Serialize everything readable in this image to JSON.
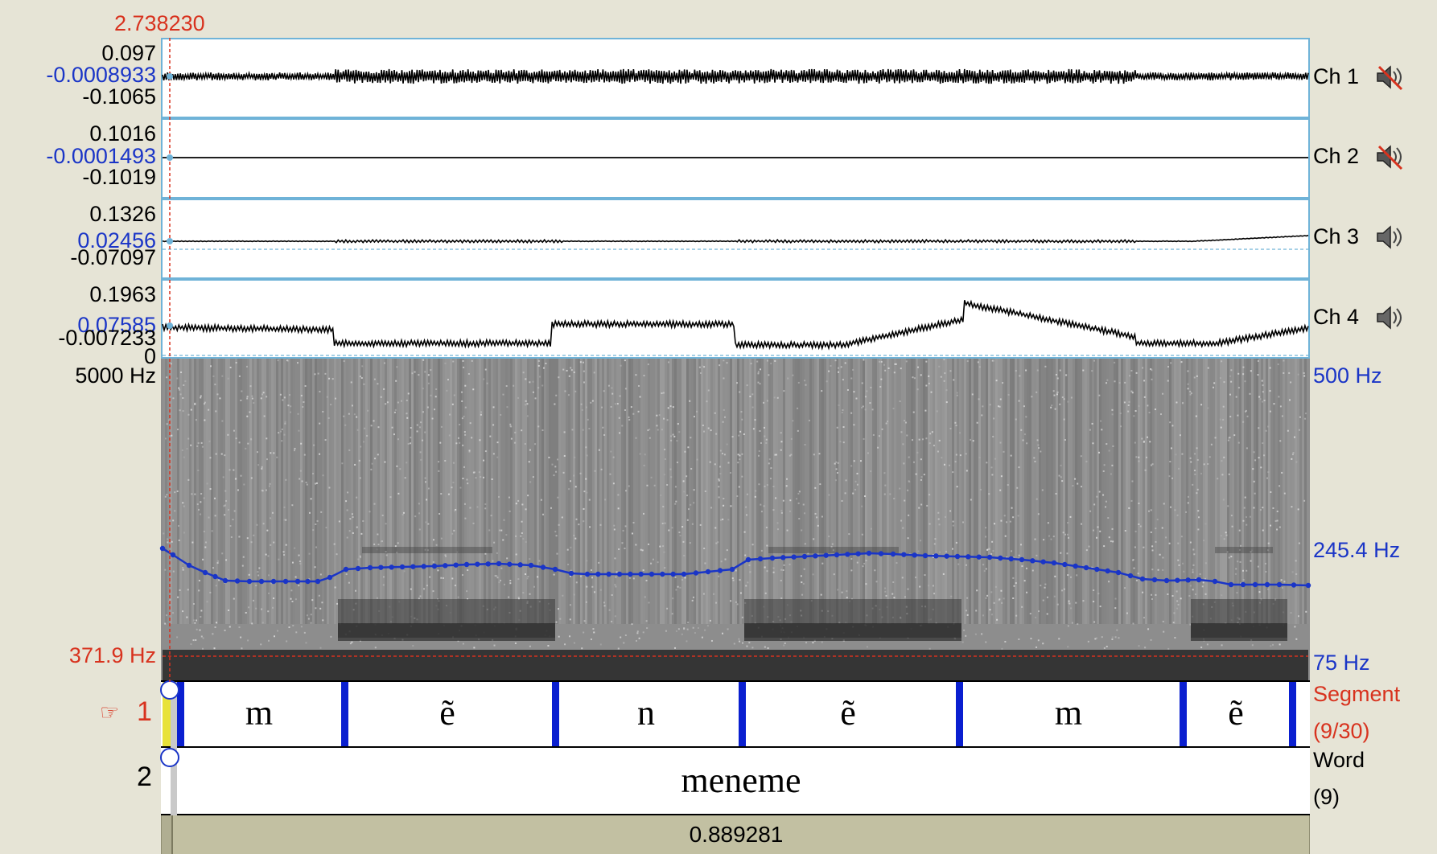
{
  "cursor": {
    "time": "2.738230"
  },
  "channels": [
    {
      "label": "Ch 1",
      "max": "0.097",
      "value": "-0.0008933",
      "min": "-0.1065",
      "muted": true
    },
    {
      "label": "Ch 2",
      "max": "0.1016",
      "value": "-0.0001493",
      "min": "-0.1019",
      "muted": true
    },
    {
      "label": "Ch 3",
      "max": "0.1326",
      "value": "0.02456",
      "min": "-0.07097",
      "muted": false
    },
    {
      "label": "Ch 4",
      "max": "0.1963",
      "value": "0.07585",
      "min": "-0.007233",
      "zero": "0",
      "muted": false
    }
  ],
  "spectrogram": {
    "freq_top": "5000 Hz",
    "cursor_freq": "371.9 Hz",
    "pitch_top": "500 Hz",
    "pitch_mid": "245.4 Hz",
    "pitch_bottom": "75 Hz"
  },
  "tiers": [
    {
      "number": "1",
      "name": "Segment",
      "count": "(9/30)",
      "pointer": "☞",
      "segments": [
        "m",
        "ẽ",
        "n",
        "ẽ",
        "m",
        "ẽ"
      ]
    },
    {
      "number": "2",
      "name": "Word",
      "count": "(9)",
      "segments": [
        "meneme"
      ]
    }
  ],
  "bottom_bar": {
    "duration": "0.889281"
  },
  "colors": {
    "background": "#e6e4d6",
    "panel_border": "#6fb3d8",
    "cursor_red": "#d8321e",
    "pitch_blue": "#1a35c7",
    "boundary_blue": "#0a1fd0",
    "duration_bar": "#c2c0a2"
  }
}
